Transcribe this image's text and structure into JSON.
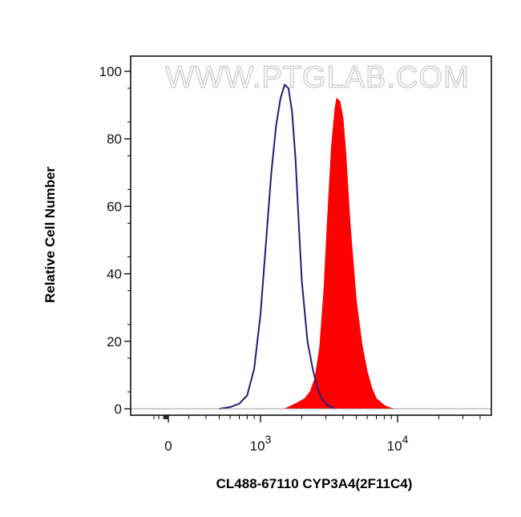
{
  "chart_data": {
    "type": "area",
    "xscale": "logicle",
    "xlabel": "CL488-67110 CYP3A4(2F11C4)",
    "ylabel": "Relative Cell Number",
    "ylim": [
      0,
      100
    ],
    "xlim": [
      -200,
      40000
    ],
    "watermark": "WWW.PTGLAB.COM",
    "yticks": [
      {
        "value": 0,
        "label": "0"
      },
      {
        "value": 20,
        "label": "20"
      },
      {
        "value": 40,
        "label": "40"
      },
      {
        "value": 60,
        "label": "60"
      },
      {
        "value": 80,
        "label": "80"
      },
      {
        "value": 100,
        "label": "100"
      }
    ],
    "xticks": [
      {
        "value": 0,
        "base": "0",
        "exp": ""
      },
      {
        "value": 1000,
        "base": "10",
        "exp": "3"
      },
      {
        "value": 10000,
        "base": "10",
        "exp": "4"
      }
    ],
    "series": [
      {
        "style": "filled",
        "color": "#ff0000",
        "x": [
          1500,
          1700,
          1900,
          2100,
          2300,
          2500,
          2700,
          2900,
          3100,
          3300,
          3500,
          3600,
          3800,
          4000,
          4200,
          4500,
          5000,
          5500,
          6000,
          6500,
          7000,
          7500,
          8000,
          8500,
          9000,
          9500
        ],
        "y": [
          0,
          1,
          2,
          3,
          5,
          9,
          18,
          35,
          58,
          78,
          89,
          92,
          91,
          86,
          75,
          55,
          32,
          19,
          11,
          6,
          3,
          2,
          1,
          0.5,
          0.2,
          0
        ]
      },
      {
        "style": "line",
        "color": "#1f1f7a",
        "x": [
          500,
          600,
          700,
          800,
          900,
          1000,
          1100,
          1200,
          1300,
          1400,
          1500,
          1600,
          1700,
          1800,
          1900,
          2000,
          2200,
          2400,
          2600,
          2800,
          3100,
          3500
        ],
        "y": [
          0,
          0.5,
          1.5,
          4,
          12,
          28,
          50,
          70,
          84,
          92,
          96,
          95,
          88,
          74,
          55,
          38,
          20,
          12,
          6,
          3,
          1,
          0
        ]
      }
    ]
  }
}
